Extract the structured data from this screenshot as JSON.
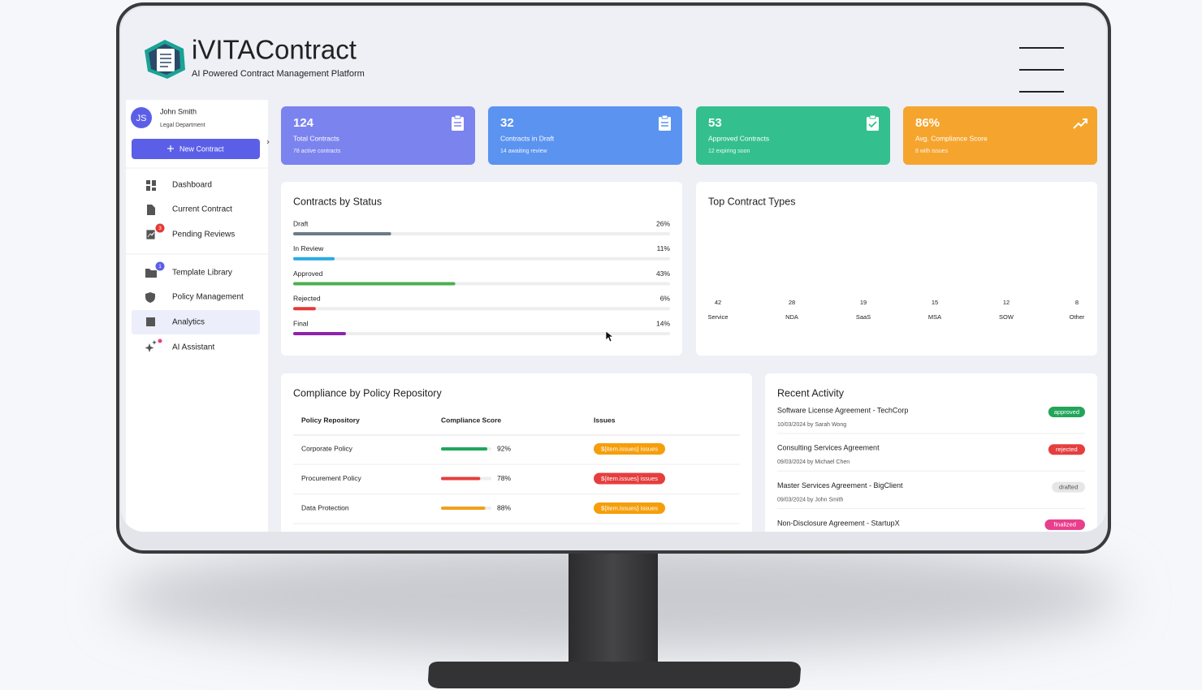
{
  "header": {
    "title": "iVITAContract",
    "subtitle": "AI Powered Contract Management Platform"
  },
  "user": {
    "initials": "JS",
    "name": "John Smith",
    "department": "Legal Department"
  },
  "new_contract_button": "New Contract",
  "nav": [
    {
      "label": "Dashboard"
    },
    {
      "label": "Current Contract"
    },
    {
      "label": "Pending Reviews",
      "badge": "3",
      "badge_color": "#e53935"
    },
    {
      "label": "Template Library",
      "badge": "1",
      "badge_color": "#5b5fe8"
    },
    {
      "label": "Policy Management"
    },
    {
      "label": "Analytics",
      "active": true
    },
    {
      "label": "AI Assistant"
    }
  ],
  "stats": [
    {
      "value": "124",
      "label": "Total Contracts",
      "note": "78 active contracts",
      "color": "#7b83ef"
    },
    {
      "value": "32",
      "label": "Contracts in Draft",
      "note": "14 awaiting review",
      "color": "#5b93f0"
    },
    {
      "value": "53",
      "label": "Approved Contracts",
      "note": "12 expiring soon",
      "color": "#34c08e"
    },
    {
      "value": "86%",
      "label": "Avg. Compliance Score",
      "note": "8 with issues",
      "color": "#f5a52e"
    }
  ],
  "contracts_by_status": {
    "title": "Contracts by Status",
    "rows": [
      {
        "label": "Draft",
        "value": 26,
        "value_label": "26%",
        "color": "#6b7d86"
      },
      {
        "label": "In Review",
        "value": 11,
        "value_label": "11%",
        "color": "#29aae2"
      },
      {
        "label": "Approved",
        "value": 43,
        "value_label": "43%",
        "color": "#4caf50"
      },
      {
        "label": "Rejected",
        "value": 6,
        "value_label": "6%",
        "color": "#e53935"
      },
      {
        "label": "Final",
        "value": 14,
        "value_label": "14%",
        "color": "#8e24aa"
      }
    ]
  },
  "top_contract_types": {
    "title": "Top Contract Types",
    "items": [
      {
        "count": 42,
        "label": "Service"
      },
      {
        "count": 28,
        "label": "NDA"
      },
      {
        "count": 19,
        "label": "SaaS"
      },
      {
        "count": 15,
        "label": "MSA"
      },
      {
        "count": 12,
        "label": "SOW"
      },
      {
        "count": 8,
        "label": "Other"
      }
    ]
  },
  "compliance": {
    "title": "Compliance by Policy Repository",
    "columns": [
      "Policy Repository",
      "Compliance Score",
      "Issues"
    ],
    "rows": [
      {
        "policy": "Corporate Policy",
        "score": 92,
        "score_label": "92%",
        "score_color": "#22a55a",
        "issues": "${item.issues} issues",
        "issues_color": "#f59e0b"
      },
      {
        "policy": "Procurement Policy",
        "score": 78,
        "score_label": "78%",
        "score_color": "#e53e3e",
        "issues": "${item.issues} issues",
        "issues_color": "#e53e3e"
      },
      {
        "policy": "Data Protection",
        "score": 88,
        "score_label": "88%",
        "score_color": "#f0a020",
        "issues": "${item.issues} issues",
        "issues_color": "#f59e0b"
      }
    ]
  },
  "recent_activity": {
    "title": "Recent Activity",
    "items": [
      {
        "title": "Software License Agreement - TechCorp",
        "meta": "10/03/2024 by Sarah Wong",
        "status": "approved",
        "status_color": "#22a55a",
        "status_text_color": "#ffffff"
      },
      {
        "title": "Consulting Services Agreement",
        "meta": "09/03/2024 by Michael Chen",
        "status": "rejected",
        "status_color": "#e53e3e",
        "status_text_color": "#ffffff"
      },
      {
        "title": "Master Services Agreement - BigClient",
        "meta": "09/03/2024 by John Smith",
        "status": "drafted",
        "status_color": "#e6e6e6",
        "status_text_color": "#555555"
      },
      {
        "title": "Non-Disclosure Agreement - StartupX",
        "status": "finalized",
        "status_color": "#e83e8c",
        "status_text_color": "#ffffff"
      }
    ]
  }
}
